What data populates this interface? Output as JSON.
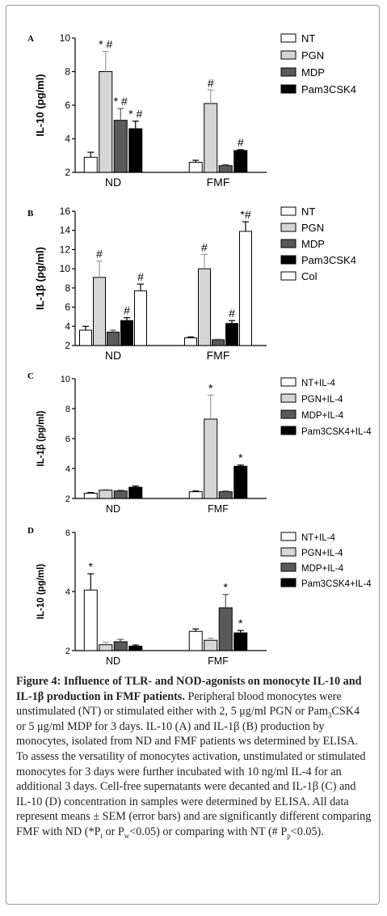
{
  "colors": {
    "NT": "#ffffff",
    "PGN": "#d6d6d6",
    "MDP": "#5a5a5a",
    "Pam3CSK4": "#000000",
    "Col": "#ffffff"
  },
  "chart_data": [
    {
      "type": "bar",
      "panel": "A",
      "ylabel": "IL-10 (pg/ml)",
      "xlabel": "",
      "ylim": [
        2,
        10
      ],
      "yticks": [
        2,
        4,
        6,
        8,
        10
      ],
      "categories": [
        "ND",
        "FMF"
      ],
      "legend_position": "top-right",
      "series": [
        {
          "name": "NT",
          "key": "NT",
          "values": [
            2.9,
            2.6
          ],
          "errors": [
            0.3,
            0.12
          ],
          "marks": [
            "",
            ""
          ]
        },
        {
          "name": "PGN",
          "key": "PGN",
          "values": [
            8.0,
            6.1
          ],
          "errors": [
            1.2,
            0.8
          ],
          "marks": [
            "* #",
            "#"
          ]
        },
        {
          "name": "MDP",
          "key": "MDP",
          "values": [
            5.1,
            2.4
          ],
          "errors": [
            0.7,
            0.06
          ],
          "marks": [
            "* #",
            ""
          ]
        },
        {
          "name": "Pam3CSK4",
          "key": "Pam3CSK4",
          "values": [
            4.6,
            3.3
          ],
          "errors": [
            0.45,
            0.05
          ],
          "marks": [
            "* #",
            "#"
          ]
        }
      ]
    },
    {
      "type": "bar",
      "panel": "B",
      "ylabel": "IL-1β (pg/ml)",
      "xlabel": "",
      "ylim": [
        2,
        16
      ],
      "yticks": [
        2,
        4,
        6,
        8,
        10,
        12,
        14,
        16
      ],
      "categories": [
        "ND",
        "FMF"
      ],
      "legend_position": "top-right",
      "series": [
        {
          "name": "NT",
          "key": "NT",
          "values": [
            3.6,
            2.8
          ],
          "errors": [
            0.4,
            0.1
          ],
          "marks": [
            "",
            ""
          ]
        },
        {
          "name": "PGN",
          "key": "PGN",
          "values": [
            9.1,
            10.0
          ],
          "errors": [
            1.7,
            1.5
          ],
          "marks": [
            "#",
            "#"
          ]
        },
        {
          "name": "MDP",
          "key": "MDP",
          "values": [
            3.4,
            2.6
          ],
          "errors": [
            0.2,
            0.05
          ],
          "marks": [
            "",
            ""
          ]
        },
        {
          "name": "Pam3CSK4",
          "key": "Pam3CSK4",
          "values": [
            4.6,
            4.3
          ],
          "errors": [
            0.3,
            0.3
          ],
          "marks": [
            "#",
            "#"
          ]
        },
        {
          "name": "Col",
          "key": "Col",
          "values": [
            7.7,
            13.9
          ],
          "errors": [
            0.7,
            1.0
          ],
          "marks": [
            "#",
            "*#"
          ]
        }
      ]
    },
    {
      "type": "bar",
      "panel": "C",
      "ylabel": "IL-1β (pg/ml)",
      "xlabel": "",
      "ylim": [
        2,
        10
      ],
      "yticks": [
        2,
        4,
        6,
        8,
        10
      ],
      "categories": [
        "ND",
        "FMF"
      ],
      "legend_position": "top-right",
      "series": [
        {
          "name": "NT+IL-4",
          "key": "NT",
          "values": [
            2.35,
            2.45
          ],
          "errors": [
            0.05,
            0.05
          ],
          "marks": [
            "",
            ""
          ]
        },
        {
          "name": "PGN+IL-4",
          "key": "PGN",
          "values": [
            2.55,
            7.3
          ],
          "errors": [
            0.05,
            1.6
          ],
          "marks": [
            "",
            "*"
          ]
        },
        {
          "name": "MDP+IL-4",
          "key": "MDP",
          "values": [
            2.5,
            2.45
          ],
          "errors": [
            0.05,
            0.05
          ],
          "marks": [
            "",
            ""
          ]
        },
        {
          "name": "Pam3CSK4+IL-4",
          "key": "Pam3CSK4",
          "values": [
            2.75,
            4.15
          ],
          "errors": [
            0.08,
            0.08
          ],
          "marks": [
            "",
            "*"
          ]
        }
      ]
    },
    {
      "type": "bar",
      "panel": "D",
      "ylabel": "IL-10 (pg/ml)",
      "xlabel": "",
      "ylim": [
        2,
        6
      ],
      "yticks": [
        2,
        4,
        6
      ],
      "categories": [
        "ND",
        "FMF"
      ],
      "legend_position": "top-right",
      "series": [
        {
          "name": "NT+IL-4",
          "key": "NT",
          "values": [
            4.05,
            2.65
          ],
          "errors": [
            0.55,
            0.08
          ],
          "marks": [
            "*",
            ""
          ]
        },
        {
          "name": "PGN+IL-4",
          "key": "PGN",
          "values": [
            2.2,
            2.35
          ],
          "errors": [
            0.08,
            0.07
          ],
          "marks": [
            "",
            ""
          ]
        },
        {
          "name": "MDP+IL-4",
          "key": "MDP",
          "values": [
            2.3,
            3.45
          ],
          "errors": [
            0.08,
            0.45
          ],
          "marks": [
            "",
            "*"
          ]
        },
        {
          "name": "Pam3CSK4+IL-4",
          "key": "Pam3CSK4",
          "values": [
            2.15,
            2.6
          ],
          "errors": [
            0.04,
            0.08
          ],
          "marks": [
            "",
            "*"
          ]
        }
      ]
    }
  ],
  "caption": {
    "title": "Figure 4: Influence of TLR- and NOD-agonists on monocyte IL-10 and IL-1β production in FMF patients.",
    "p1": " Peripheral blood monocytes were unstimulated (NT) or stimulated either with 2, 5 μg/ml PGN or Pam",
    "sub3": "3",
    "p2": "CSK4 or 5 μg/ml MDP for 3 days. IL-10 (A) and IL-1β (B) production by monocytes, isolated from ND and FMF patients ws determined by ELISA. To assess the versatility of monocytes activation, unstimulated or stimulated monocytes for 3 days were further incubated with 10 ng/ml IL-4 for an additional 3 days. Cell-free supernatants were decanted and IL-1β (C) and IL-10 (D) concentration in samples were determined by ELISA. All data represent means ± SEM (error bars) and are significantly different comparing FMF with ND (*P",
    "sub_t": "t",
    "p3": " or P",
    "sub_w": "w",
    "p4": "<0.05) or comparing with NT (# P",
    "sub_p": "p",
    "p5": "<0.05)."
  }
}
